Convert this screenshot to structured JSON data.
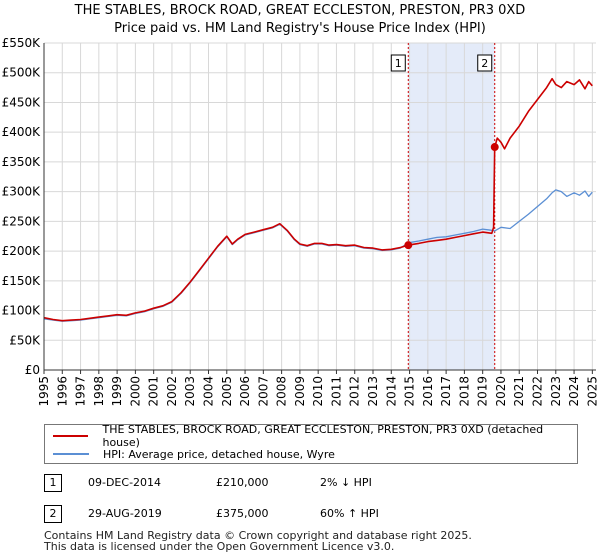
{
  "title_line1": "THE STABLES, BROCK ROAD, GREAT ECCLESTON, PRESTON, PR3 0XD",
  "title_line2": "Price paid vs. HM Land Registry's House Price Index (HPI)",
  "chart_data": {
    "type": "line",
    "title": "THE STABLES, BROCK ROAD, GREAT ECCLESTON, PRESTON, PR3 0XD — Price paid vs. HM Land Registry's House Price Index (HPI)",
    "xlabel": "",
    "ylabel": "",
    "xlim": [
      1995,
      2025.2
    ],
    "ylim": [
      0,
      550000
    ],
    "grid": true,
    "y_ticks": [
      0,
      50000,
      100000,
      150000,
      200000,
      250000,
      300000,
      350000,
      400000,
      450000,
      500000,
      550000
    ],
    "y_tick_labels": [
      "£0",
      "£50K",
      "£100K",
      "£150K",
      "£200K",
      "£250K",
      "£300K",
      "£350K",
      "£400K",
      "£450K",
      "£500K",
      "£550K"
    ],
    "x_tick_labels": [
      "1995",
      "1996",
      "1997",
      "1998",
      "1999",
      "2000",
      "2001",
      "2002",
      "2003",
      "2004",
      "2005",
      "2006",
      "2007",
      "2008",
      "2009",
      "2010",
      "2011",
      "2012",
      "2013",
      "2014",
      "2015",
      "2016",
      "2017",
      "2018",
      "2019",
      "2020",
      "2021",
      "2022",
      "2023",
      "2024",
      "2025"
    ],
    "shaded_span": [
      2014.93,
      2019.66
    ],
    "series": [
      {
        "name": "THE STABLES, BROCK ROAD, GREAT ECCLESTON, PRESTON, PR3 0XD (detached house)",
        "color": "#cc0000",
        "x": [
          1995.0,
          1995.5,
          1996.0,
          1996.5,
          1997.0,
          1997.5,
          1998.0,
          1998.5,
          1999.0,
          1999.5,
          2000.0,
          2000.5,
          2001.0,
          2001.5,
          2002.0,
          2002.5,
          2003.0,
          2003.5,
          2004.0,
          2004.5,
          2005.0,
          2005.3,
          2005.6,
          2006.0,
          2006.5,
          2007.0,
          2007.5,
          2007.9,
          2008.3,
          2008.7,
          2009.0,
          2009.4,
          2009.8,
          2010.2,
          2010.6,
          2011.0,
          2011.5,
          2012.0,
          2012.5,
          2013.0,
          2013.5,
          2014.0,
          2014.5,
          2014.93,
          2015.5,
          2016.0,
          2016.5,
          2017.0,
          2017.5,
          2018.0,
          2018.5,
          2019.0,
          2019.5,
          2019.6,
          2019.66,
          2019.8,
          2020.0,
          2020.2,
          2020.5,
          2021.0,
          2021.5,
          2022.0,
          2022.5,
          2022.8,
          2023.0,
          2023.3,
          2023.6,
          2024.0,
          2024.3,
          2024.6,
          2024.8,
          2025.0
        ],
        "y": [
          88000,
          85000,
          83000,
          84000,
          85000,
          87000,
          89000,
          91000,
          93000,
          92000,
          96000,
          99000,
          104000,
          108000,
          115000,
          130000,
          148000,
          168000,
          188000,
          208000,
          225000,
          212000,
          220000,
          228000,
          232000,
          236000,
          240000,
          246000,
          235000,
          220000,
          212000,
          209000,
          213000,
          213000,
          210000,
          211000,
          209000,
          210000,
          206000,
          205000,
          202000,
          203000,
          206000,
          210000,
          213000,
          216000,
          218000,
          220000,
          223000,
          226000,
          229000,
          232000,
          230000,
          240000,
          375000,
          390000,
          383000,
          372000,
          390000,
          410000,
          435000,
          455000,
          475000,
          490000,
          480000,
          475000,
          485000,
          480000,
          488000,
          473000,
          485000,
          478000
        ]
      },
      {
        "name": "HPI: Average price, detached house, Wyre",
        "color": "#5b8fd4",
        "x": [
          1995.0,
          1995.5,
          1996.0,
          1996.5,
          1997.0,
          1997.5,
          1998.0,
          1998.5,
          1999.0,
          1999.5,
          2000.0,
          2000.5,
          2001.0,
          2001.5,
          2002.0,
          2002.5,
          2003.0,
          2003.5,
          2004.0,
          2004.5,
          2005.0,
          2005.3,
          2005.6,
          2006.0,
          2006.5,
          2007.0,
          2007.5,
          2007.9,
          2008.3,
          2008.7,
          2009.0,
          2009.4,
          2009.8,
          2010.2,
          2010.6,
          2011.0,
          2011.5,
          2012.0,
          2012.5,
          2013.0,
          2013.5,
          2014.0,
          2014.5,
          2014.93,
          2015.5,
          2016.0,
          2016.5,
          2017.0,
          2017.5,
          2018.0,
          2018.5,
          2019.0,
          2019.5,
          2019.66,
          2020.0,
          2020.5,
          2021.0,
          2021.5,
          2022.0,
          2022.5,
          2022.8,
          2023.0,
          2023.3,
          2023.6,
          2024.0,
          2024.3,
          2024.6,
          2024.8,
          2025.0
        ],
        "y": [
          86000,
          84000,
          82000,
          83000,
          84000,
          86000,
          88000,
          90000,
          92000,
          91000,
          95000,
          98000,
          103000,
          107000,
          114000,
          129000,
          147000,
          167000,
          187000,
          207000,
          224000,
          211000,
          219000,
          227000,
          231000,
          235000,
          239000,
          245000,
          234000,
          219000,
          211000,
          208000,
          212000,
          212000,
          209000,
          210000,
          208000,
          209000,
          205000,
          204000,
          201000,
          202000,
          205000,
          214000,
          217000,
          220000,
          223000,
          224000,
          227000,
          230000,
          233000,
          237000,
          235000,
          234000,
          240000,
          238000,
          250000,
          262000,
          275000,
          288000,
          298000,
          303000,
          300000,
          292000,
          298000,
          294000,
          301000,
          292000,
          299000
        ]
      }
    ],
    "markers": [
      {
        "label": "1",
        "x": 2014.93,
        "y": 210000
      },
      {
        "label": "2",
        "x": 2019.66,
        "y": 375000
      }
    ]
  },
  "legend": [
    {
      "label": "THE STABLES, BROCK ROAD, GREAT ECCLESTON, PRESTON, PR3 0XD (detached house)",
      "color": "#cc0000"
    },
    {
      "label": "HPI: Average price, detached house, Wyre",
      "color": "#5b8fd4"
    }
  ],
  "sales": [
    {
      "num": "1",
      "date": "09-DEC-2014",
      "price": "£210,000",
      "hpi": "2% ↓ HPI"
    },
    {
      "num": "2",
      "date": "29-AUG-2019",
      "price": "£375,000",
      "hpi": "60% ↑ HPI"
    }
  ],
  "footer_line1": "Contains HM Land Registry data © Crown copyright and database right 2025.",
  "footer_line2": "This data is licensed under the Open Government Licence v3.0."
}
